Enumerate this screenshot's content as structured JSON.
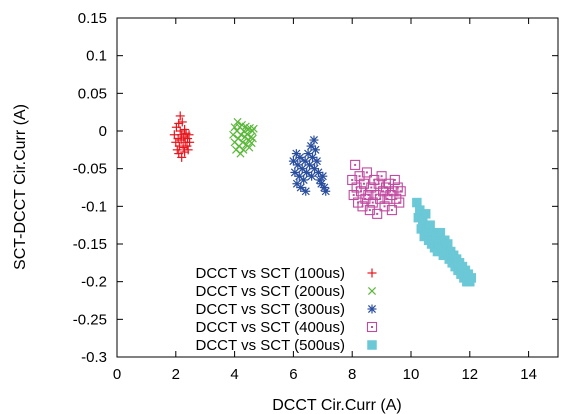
{
  "chart_data": {
    "type": "scatter",
    "title": "",
    "xlabel": "DCCT Cir.Curr (A)",
    "ylabel": "SCT-DCCT Cir.Curr (A)",
    "xlim": [
      0,
      15
    ],
    "ylim": [
      -0.3,
      0.15
    ],
    "xticks": [
      0,
      2,
      4,
      6,
      8,
      10,
      12,
      14
    ],
    "yticks": [
      0.15,
      0.1,
      0.05,
      0,
      -0.05,
      -0.1,
      -0.15,
      -0.2,
      -0.25,
      -0.3
    ],
    "ytick_labels": [
      "0.15",
      "0.1",
      "0.05",
      "0",
      "-0.05",
      "-0.1",
      "-0.15",
      "-0.2",
      "-0.25",
      "-0.3"
    ],
    "grid": false,
    "legend_position": "bottom-left",
    "series": [
      {
        "name": "DCCT vs SCT (100us)",
        "color": "#e8141c",
        "marker": "plus",
        "points": [
          [
            1.95,
            -0.005
          ],
          [
            2.0,
            -0.015
          ],
          [
            2.02,
            0.005
          ],
          [
            2.05,
            -0.025
          ],
          [
            2.08,
            -0.01
          ],
          [
            2.1,
            0.01
          ],
          [
            2.1,
            -0.03
          ],
          [
            2.12,
            -0.02
          ],
          [
            2.15,
            0.0
          ],
          [
            2.15,
            0.02
          ],
          [
            2.18,
            -0.012
          ],
          [
            2.2,
            -0.035
          ],
          [
            2.2,
            -0.005
          ],
          [
            2.22,
            0.012
          ],
          [
            2.25,
            -0.022
          ],
          [
            2.27,
            -0.008
          ],
          [
            2.3,
            0.002
          ],
          [
            2.3,
            -0.028
          ],
          [
            2.32,
            -0.015
          ],
          [
            2.35,
            -0.003
          ],
          [
            2.38,
            -0.02
          ],
          [
            2.4,
            -0.01
          ],
          [
            2.42,
            -0.025
          ],
          [
            2.45,
            -0.005
          ],
          [
            2.47,
            -0.015
          ]
        ]
      },
      {
        "name": "DCCT vs SCT (200us)",
        "color": "#5bb83a",
        "marker": "cross",
        "points": [
          [
            3.95,
            -0.005
          ],
          [
            4.0,
            0.005
          ],
          [
            4.0,
            -0.015
          ],
          [
            4.05,
            -0.025
          ],
          [
            4.08,
            0.0
          ],
          [
            4.1,
            0.012
          ],
          [
            4.12,
            -0.01
          ],
          [
            4.15,
            -0.02
          ],
          [
            4.18,
            0.005
          ],
          [
            4.2,
            -0.03
          ],
          [
            4.22,
            -0.005
          ],
          [
            4.25,
            0.008
          ],
          [
            4.28,
            -0.015
          ],
          [
            4.3,
            -0.025
          ],
          [
            4.32,
            0.0
          ],
          [
            4.35,
            -0.008
          ],
          [
            4.38,
            0.006
          ],
          [
            4.4,
            -0.018
          ],
          [
            4.42,
            -0.004
          ],
          [
            4.45,
            0.002
          ],
          [
            4.48,
            -0.012
          ],
          [
            4.5,
            -0.022
          ],
          [
            4.52,
            0.004
          ],
          [
            4.55,
            -0.008
          ],
          [
            4.58,
            -0.016
          ],
          [
            4.6,
            0.0
          ],
          [
            4.62,
            -0.01
          ],
          [
            4.65,
            0.003
          ]
        ]
      },
      {
        "name": "DCCT vs SCT (300us)",
        "color": "#2a4f9e",
        "marker": "star",
        "points": [
          [
            6.0,
            -0.04
          ],
          [
            6.05,
            -0.055
          ],
          [
            6.1,
            -0.03
          ],
          [
            6.12,
            -0.07
          ],
          [
            6.15,
            -0.045
          ],
          [
            6.2,
            -0.06
          ],
          [
            6.22,
            -0.035
          ],
          [
            6.25,
            -0.075
          ],
          [
            6.3,
            -0.05
          ],
          [
            6.35,
            -0.065
          ],
          [
            6.4,
            -0.04
          ],
          [
            6.42,
            -0.08
          ],
          [
            6.45,
            -0.055
          ],
          [
            6.5,
            -0.03
          ],
          [
            6.55,
            -0.045
          ],
          [
            6.6,
            -0.02
          ],
          [
            6.62,
            -0.06
          ],
          [
            6.65,
            -0.035
          ],
          [
            6.7,
            -0.012
          ],
          [
            6.72,
            -0.05
          ],
          [
            6.75,
            -0.025
          ],
          [
            6.8,
            -0.04
          ],
          [
            6.85,
            -0.055
          ],
          [
            6.9,
            -0.065
          ],
          [
            6.95,
            -0.07
          ],
          [
            7.0,
            -0.06
          ],
          [
            7.05,
            -0.075
          ],
          [
            7.1,
            -0.08
          ]
        ]
      },
      {
        "name": "DCCT vs SCT (400us)",
        "color": "#c04aa0",
        "marker": "square-open",
        "points": [
          [
            8.0,
            -0.065
          ],
          [
            8.05,
            -0.085
          ],
          [
            8.1,
            -0.045
          ],
          [
            8.15,
            -0.075
          ],
          [
            8.2,
            -0.095
          ],
          [
            8.25,
            -0.06
          ],
          [
            8.3,
            -0.08
          ],
          [
            8.35,
            -0.1
          ],
          [
            8.4,
            -0.07
          ],
          [
            8.45,
            -0.09
          ],
          [
            8.5,
            -0.055
          ],
          [
            8.55,
            -0.085
          ],
          [
            8.6,
            -0.105
          ],
          [
            8.65,
            -0.075
          ],
          [
            8.7,
            -0.095
          ],
          [
            8.75,
            -0.065
          ],
          [
            8.8,
            -0.085
          ],
          [
            8.85,
            -0.11
          ],
          [
            8.9,
            -0.07
          ],
          [
            8.95,
            -0.09
          ],
          [
            9.0,
            -0.06
          ],
          [
            9.05,
            -0.08
          ],
          [
            9.1,
            -0.1
          ],
          [
            9.15,
            -0.075
          ],
          [
            9.2,
            -0.09
          ],
          [
            9.25,
            -0.07
          ],
          [
            9.3,
            -0.085
          ],
          [
            9.35,
            -0.105
          ],
          [
            9.4,
            -0.08
          ],
          [
            9.45,
            -0.065
          ],
          [
            9.5,
            -0.09
          ],
          [
            9.55,
            -0.075
          ],
          [
            9.6,
            -0.095
          ],
          [
            9.65,
            -0.08
          ]
        ]
      },
      {
        "name": "DCCT vs SCT (500us)",
        "color": "#6bc8d6",
        "marker": "square-filled",
        "points": [
          [
            10.2,
            -0.095
          ],
          [
            10.25,
            -0.115
          ],
          [
            10.3,
            -0.105
          ],
          [
            10.35,
            -0.13
          ],
          [
            10.4,
            -0.12
          ],
          [
            10.45,
            -0.14
          ],
          [
            10.5,
            -0.11
          ],
          [
            10.55,
            -0.13
          ],
          [
            10.6,
            -0.145
          ],
          [
            10.65,
            -0.125
          ],
          [
            10.7,
            -0.15
          ],
          [
            10.75,
            -0.135
          ],
          [
            10.8,
            -0.155
          ],
          [
            10.85,
            -0.14
          ],
          [
            10.9,
            -0.16
          ],
          [
            10.95,
            -0.15
          ],
          [
            11.0,
            -0.135
          ],
          [
            11.05,
            -0.155
          ],
          [
            11.1,
            -0.165
          ],
          [
            11.15,
            -0.145
          ],
          [
            11.2,
            -0.16
          ],
          [
            11.25,
            -0.15
          ],
          [
            11.3,
            -0.17
          ],
          [
            11.35,
            -0.16
          ],
          [
            11.4,
            -0.175
          ],
          [
            11.45,
            -0.165
          ],
          [
            11.5,
            -0.18
          ],
          [
            11.55,
            -0.17
          ],
          [
            11.6,
            -0.185
          ],
          [
            11.65,
            -0.175
          ],
          [
            11.7,
            -0.19
          ],
          [
            11.75,
            -0.18
          ],
          [
            11.8,
            -0.195
          ],
          [
            11.85,
            -0.185
          ],
          [
            11.9,
            -0.2
          ],
          [
            11.95,
            -0.19
          ],
          [
            12.0,
            -0.2
          ],
          [
            12.05,
            -0.195
          ]
        ]
      }
    ]
  }
}
